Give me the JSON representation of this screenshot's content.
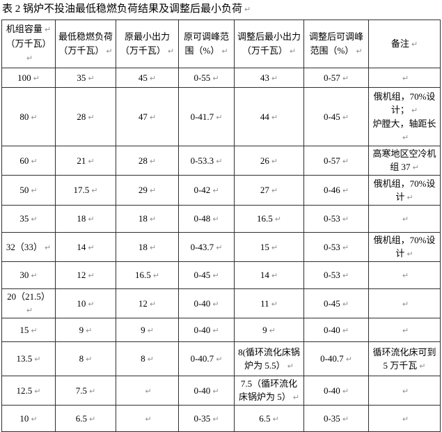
{
  "title": "表 2 锅炉不投油最低稳燃负荷结果及调整后最小负荷",
  "marks": {
    "paragraph": "↵"
  },
  "colors": {
    "background": "#ffffff",
    "text": "#000000",
    "border": "#2e2e2e",
    "paragraph_mark": "#8f8f8f"
  },
  "table": {
    "columns": [
      {
        "id": "unit-capacity",
        "lines": [
          "机组容量",
          "（万千瓦）"
        ]
      },
      {
        "id": "min-stable-load",
        "lines": [
          "最低稳燃负荷（万千瓦）"
        ]
      },
      {
        "id": "orig-min-output",
        "lines": [
          "原最小出力（万千瓦）"
        ]
      },
      {
        "id": "orig-peak-range",
        "lines": [
          "原可调峰范围（%）"
        ]
      },
      {
        "id": "adj-min-output",
        "lines": [
          "调整后最小出力（万千瓦）"
        ]
      },
      {
        "id": "adj-peak-range",
        "lines": [
          "调整后可调峰范围（%）"
        ]
      },
      {
        "id": "remarks",
        "lines": [
          "备注"
        ]
      }
    ],
    "rows": [
      {
        "cells": [
          [
            "100"
          ],
          [
            "35"
          ],
          [
            "45"
          ],
          [
            "0-55"
          ],
          [
            "43"
          ],
          [
            "0-57"
          ],
          [
            ""
          ]
        ]
      },
      {
        "cells": [
          [
            "80"
          ],
          [
            "28"
          ],
          [
            "47"
          ],
          [
            "0-41.7"
          ],
          [
            "44"
          ],
          [
            "0-45"
          ],
          [
            "俄机组，70%设计；",
            "炉膛大，轴距长"
          ]
        ]
      },
      {
        "cells": [
          [
            "60"
          ],
          [
            "21"
          ],
          [
            "28"
          ],
          [
            "0-53.3"
          ],
          [
            "26"
          ],
          [
            "0-57"
          ],
          [
            "高寒地区空冷机组 37"
          ]
        ]
      },
      {
        "cells": [
          [
            "50"
          ],
          [
            "17.5"
          ],
          [
            "29"
          ],
          [
            "0-42"
          ],
          [
            "27"
          ],
          [
            "0-46"
          ],
          [
            "俄机组，70%设计"
          ]
        ]
      },
      {
        "cells": [
          [
            "35"
          ],
          [
            "18"
          ],
          [
            "18"
          ],
          [
            "0-48"
          ],
          [
            "16.5"
          ],
          [
            "0-53"
          ],
          [
            ""
          ]
        ]
      },
      {
        "cells": [
          [
            "32（33）"
          ],
          [
            "14"
          ],
          [
            "18"
          ],
          [
            "0-43.7"
          ],
          [
            "15"
          ],
          [
            "0-53"
          ],
          [
            "俄机组，70%设计"
          ]
        ]
      },
      {
        "cells": [
          [
            "30"
          ],
          [
            "12"
          ],
          [
            "16.5"
          ],
          [
            "0-45"
          ],
          [
            "14"
          ],
          [
            "0-53"
          ],
          [
            ""
          ]
        ]
      },
      {
        "cells": [
          [
            "20（21.5）"
          ],
          [
            "10"
          ],
          [
            "12"
          ],
          [
            "0-40"
          ],
          [
            "11"
          ],
          [
            "0-45"
          ],
          [
            ""
          ]
        ]
      },
      {
        "cells": [
          [
            "15"
          ],
          [
            "9"
          ],
          [
            "9"
          ],
          [
            "0-40"
          ],
          [
            "9"
          ],
          [
            "0-40"
          ],
          [
            ""
          ]
        ]
      },
      {
        "cells": [
          [
            "13.5"
          ],
          [
            "8"
          ],
          [
            "8"
          ],
          [
            "0-40.7"
          ],
          [
            "8(循环流化床锅炉为 5.5）"
          ],
          [
            "0-40.7"
          ],
          [
            "循环流化床可到 5 万千瓦"
          ]
        ]
      },
      {
        "cells": [
          [
            "12.5"
          ],
          [
            "7.5"
          ],
          [
            ""
          ],
          [
            "0-40"
          ],
          [
            "7.5（循环流化床锅炉为 5）"
          ],
          [
            "0-40"
          ],
          [
            ""
          ]
        ]
      },
      {
        "cells": [
          [
            "10"
          ],
          [
            "6.5"
          ],
          [
            ""
          ],
          [
            "0-35"
          ],
          [
            "6.5"
          ],
          [
            "0-35"
          ],
          [
            ""
          ]
        ]
      }
    ]
  }
}
